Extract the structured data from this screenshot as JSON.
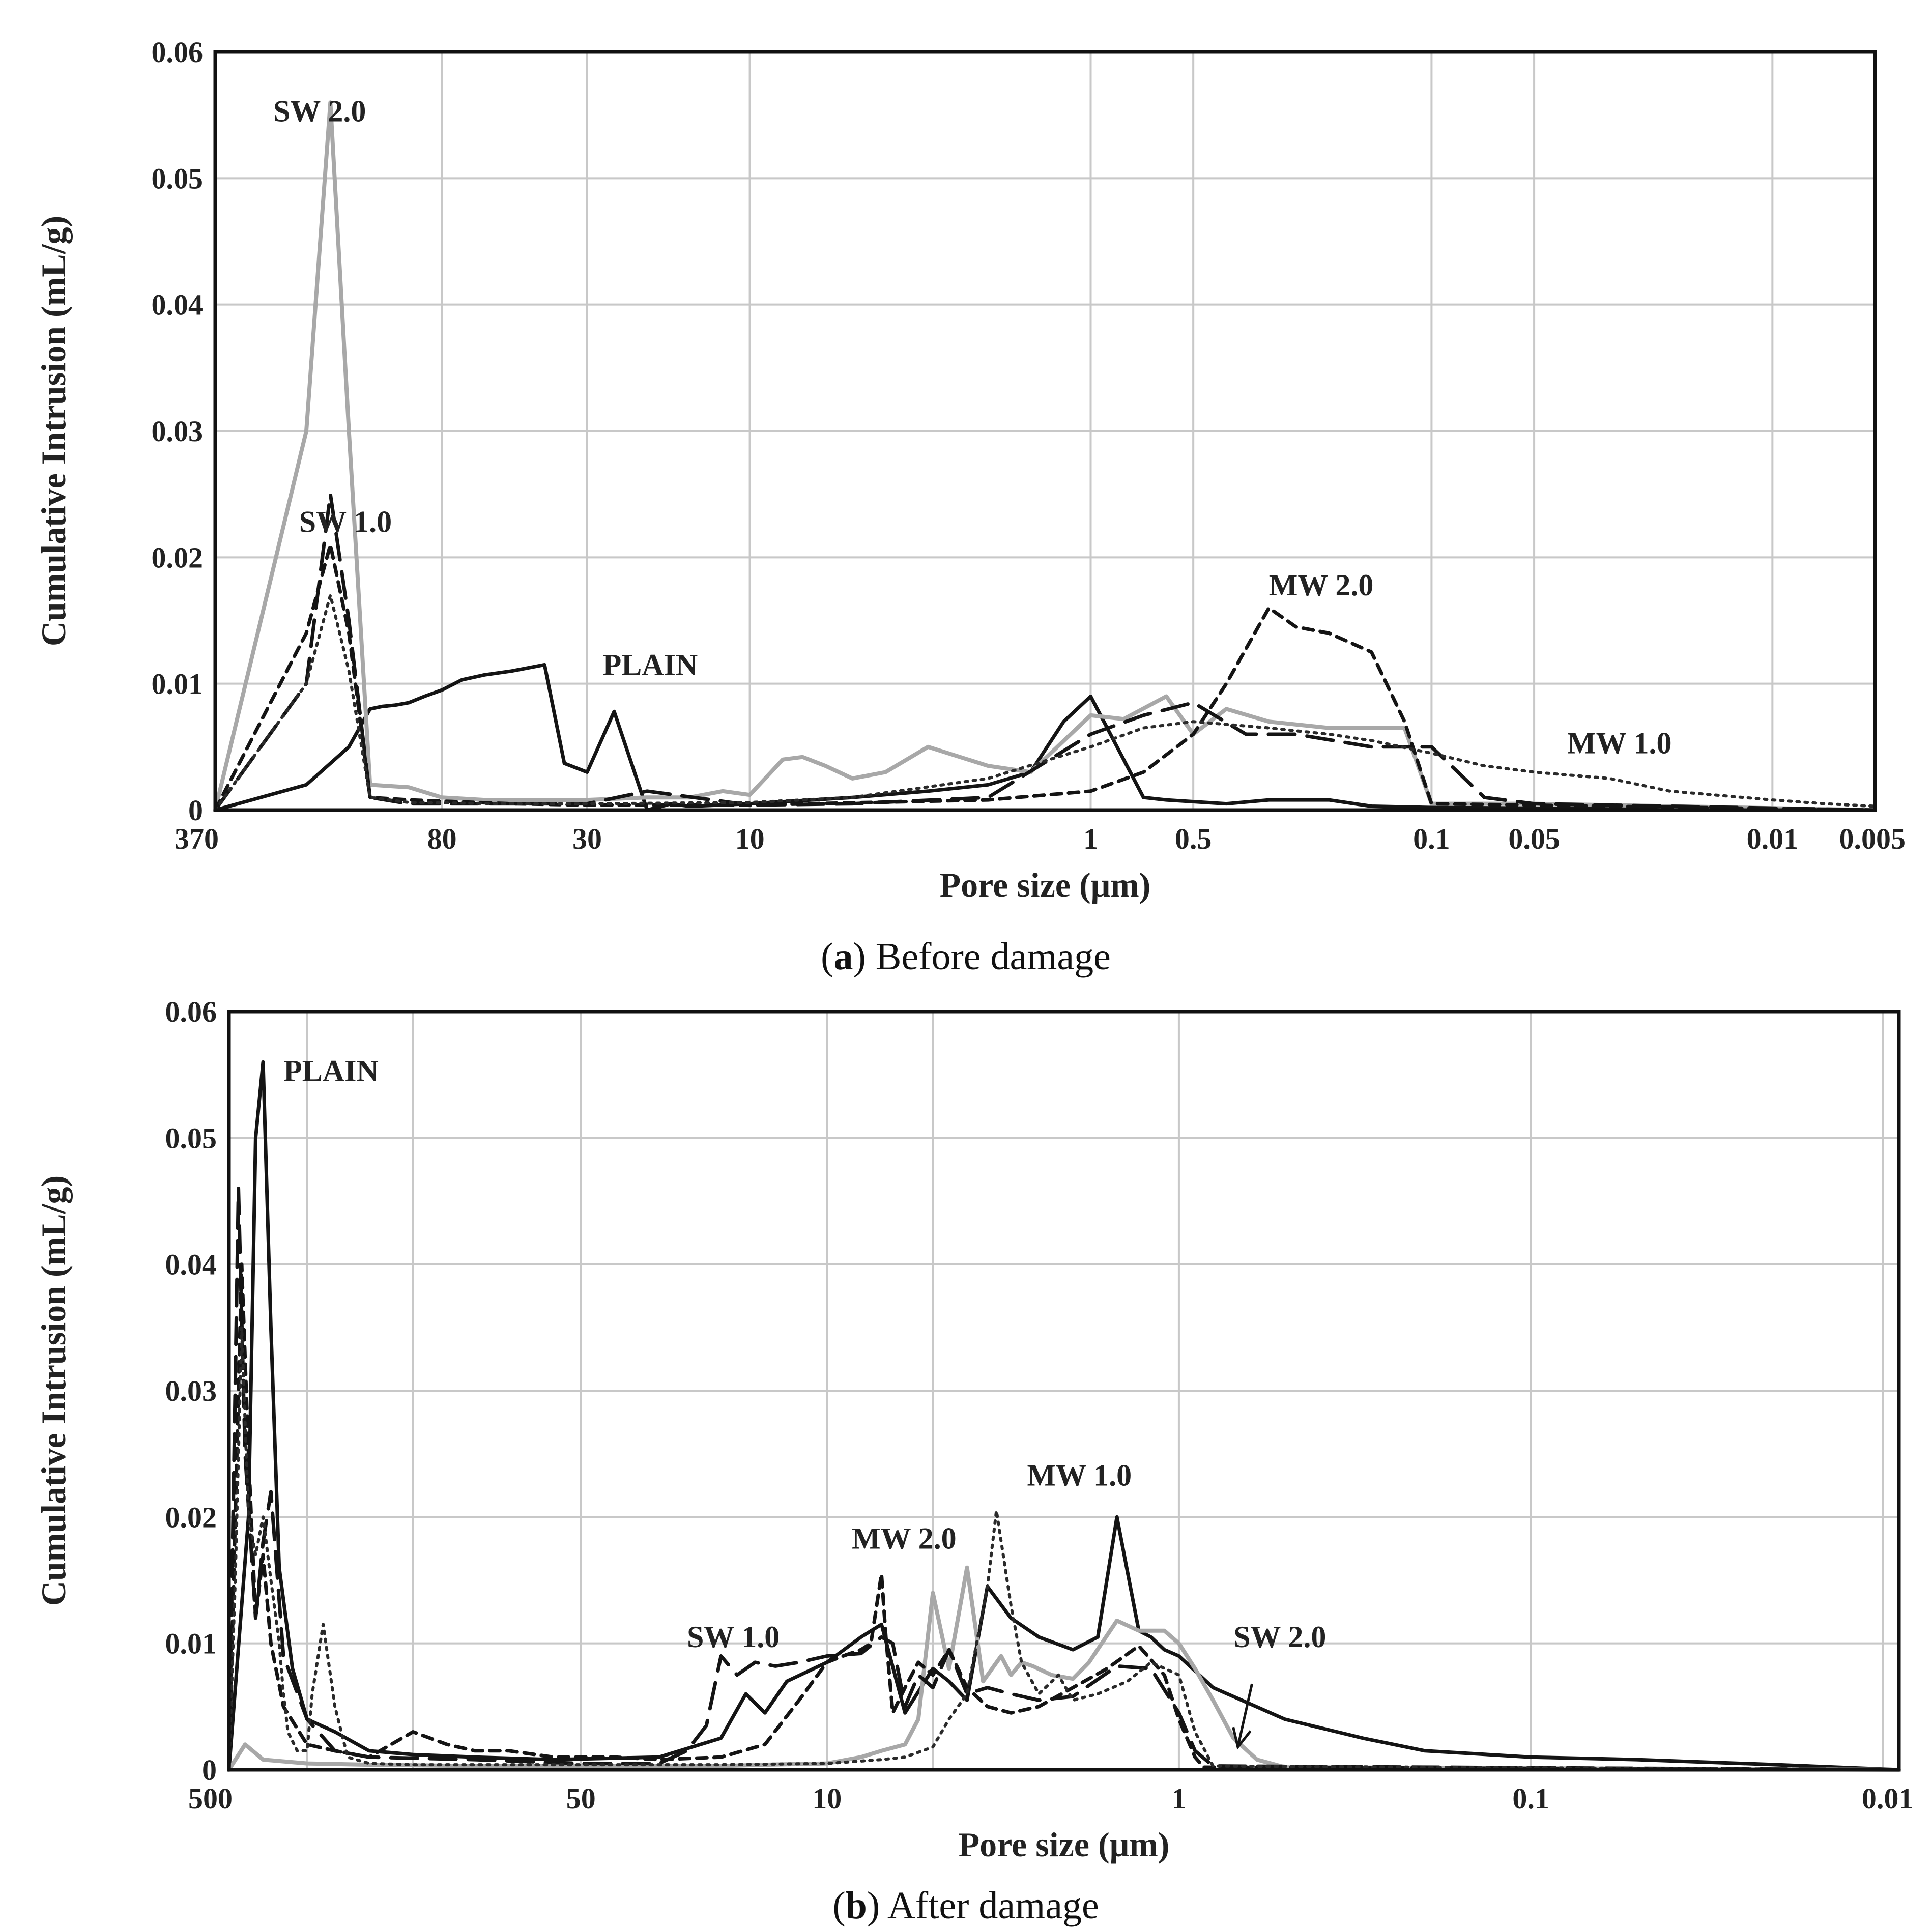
{
  "chart_data": [
    {
      "type": "line",
      "panel_letter": "a",
      "caption_rest": ") Before damage",
      "xlabel": "Pore size (μm)",
      "ylabel": "Cumulative Intrusion (mL/g)",
      "x_scale": "log-reversed",
      "xlim": [
        370,
        0.005
      ],
      "ylim": [
        0,
        0.06
      ],
      "x_tick_values": [
        370,
        80,
        30,
        10,
        1,
        0.5,
        0.1,
        0.05,
        0.01,
        0.005
      ],
      "x_tick_labels": [
        "370",
        "80",
        "30",
        "10",
        "1",
        "0.5",
        "0.1",
        "0.05",
        "0.01",
        "0.005"
      ],
      "y_tick_values": [
        0,
        0.01,
        0.02,
        0.03,
        0.04,
        0.05,
        0.06
      ],
      "y_tick_labels": [
        "0",
        "0.01",
        "0.02",
        "0.03",
        "0.04",
        "0.05",
        "0.06"
      ],
      "x_grid": [
        370,
        80,
        30,
        10,
        1,
        0.5,
        0.1,
        0.05,
        0.01,
        0.005
      ],
      "annotations": [
        {
          "text": "SW 2.0",
          "x": 250,
          "y": 0.0545
        },
        {
          "text": "SW 1.0",
          "x": 210,
          "y": 0.022
        },
        {
          "text": "PLAIN",
          "x": 27,
          "y": 0.0107
        },
        {
          "text": "MW 2.0",
          "x": 0.3,
          "y": 0.017
        },
        {
          "text": "MW 1.0",
          "x": 0.04,
          "y": 0.0045
        }
      ],
      "series": [
        {
          "name": "PLAIN",
          "style": "solid-black",
          "x": [
            370,
            200,
            150,
            130,
            120,
            110,
            100,
            90,
            80,
            70,
            60,
            50,
            40,
            35,
            30,
            25,
            20,
            17,
            15,
            10,
            5,
            3,
            2,
            1.5,
            1.2,
            1.0,
            0.8,
            0.7,
            0.6,
            0.4,
            0.3,
            0.2,
            0.15,
            0.1,
            0.005
          ],
          "y": [
            0,
            0.002,
            0.005,
            0.008,
            0.0082,
            0.0083,
            0.0085,
            0.009,
            0.0095,
            0.0103,
            0.0107,
            0.011,
            0.0115,
            0.0037,
            0.003,
            0.0078,
            0.0,
            0.0005,
            0.0003,
            0.0005,
            0.001,
            0.0015,
            0.002,
            0.003,
            0.007,
            0.009,
            0.004,
            0.001,
            0.0008,
            0.0005,
            0.0008,
            0.0008,
            0.0003,
            0.0002,
            0
          ]
        },
        {
          "name": "SW 2.0",
          "style": "solid-gray",
          "x": [
            370,
            200,
            170,
            150,
            130,
            100,
            80,
            60,
            40,
            30,
            20,
            15,
            12,
            10,
            8,
            7,
            6,
            5,
            4,
            3,
            2,
            1.5,
            1.0,
            0.8,
            0.6,
            0.5,
            0.4,
            0.3,
            0.2,
            0.12,
            0.1,
            0.05,
            0.005
          ],
          "y": [
            0,
            0.03,
            0.056,
            0.03,
            0.002,
            0.0018,
            0.001,
            0.0008,
            0.0008,
            0.0008,
            0.001,
            0.001,
            0.0015,
            0.0012,
            0.004,
            0.0042,
            0.0035,
            0.0025,
            0.003,
            0.005,
            0.0035,
            0.003,
            0.0075,
            0.0072,
            0.009,
            0.006,
            0.008,
            0.007,
            0.0065,
            0.0065,
            0.0005,
            0.0005,
            0
          ]
        },
        {
          "name": "SW 1.0",
          "style": "long-dash-black",
          "x": [
            370,
            200,
            170,
            150,
            130,
            100,
            50,
            30,
            20,
            10,
            5,
            2,
            1,
            0.7,
            0.5,
            0.35,
            0.25,
            0.15,
            0.1,
            0.07,
            0.05,
            0.005
          ],
          "y": [
            0,
            0.01,
            0.025,
            0.015,
            0.001,
            0.0005,
            0.0005,
            0.0005,
            0.0015,
            0.0004,
            0.0005,
            0.001,
            0.006,
            0.0075,
            0.0085,
            0.006,
            0.006,
            0.005,
            0.005,
            0.001,
            0.0005,
            0
          ]
        },
        {
          "name": "MW 2.0",
          "style": "short-dash-black",
          "x": [
            370,
            200,
            170,
            150,
            130,
            100,
            50,
            30,
            10,
            2,
            1,
            0.7,
            0.5,
            0.4,
            0.3,
            0.25,
            0.2,
            0.15,
            0.12,
            0.1,
            0.005
          ],
          "y": [
            0,
            0.014,
            0.021,
            0.014,
            0.001,
            0.0008,
            0.0005,
            0.0004,
            0.0004,
            0.0008,
            0.0015,
            0.003,
            0.006,
            0.01,
            0.016,
            0.0145,
            0.014,
            0.0125,
            0.007,
            0.0005,
            0
          ]
        },
        {
          "name": "MW 1.0",
          "style": "dotted-black",
          "x": [
            370,
            200,
            170,
            150,
            130,
            100,
            50,
            30,
            10,
            5,
            2,
            1,
            0.7,
            0.5,
            0.3,
            0.2,
            0.15,
            0.1,
            0.07,
            0.05,
            0.03,
            0.02,
            0.01,
            0.007,
            0.005
          ],
          "y": [
            0,
            0.01,
            0.017,
            0.011,
            0.001,
            0.0006,
            0.0005,
            0.0005,
            0.0006,
            0.001,
            0.0025,
            0.005,
            0.0065,
            0.007,
            0.0065,
            0.006,
            0.0055,
            0.0045,
            0.0035,
            0.003,
            0.0025,
            0.0015,
            0.0008,
            0.0005,
            0.0003
          ]
        }
      ]
    },
    {
      "type": "line",
      "panel_letter": "b",
      "caption_rest": ") After damage",
      "xlabel": "Pore size (μm)",
      "ylabel": "Cumulative Intrusion (mL/g)",
      "x_scale": "log-reversed",
      "xlim": [
        500,
        0.009
      ],
      "ylim": [
        0,
        0.06
      ],
      "x_tick_values": [
        500,
        50,
        10,
        1,
        0.1,
        0.01
      ],
      "x_tick_labels": [
        "500",
        "50",
        "10",
        "1",
        "0.1",
        "0.01"
      ],
      "y_tick_values": [
        0,
        0.01,
        0.02,
        0.03,
        0.04,
        0.05,
        0.06
      ],
      "y_tick_labels": [
        "0",
        "0.01",
        "0.02",
        "0.03",
        "0.04",
        "0.05",
        "0.06"
      ],
      "x_grid": [
        500,
        300,
        150,
        50,
        10,
        5,
        1,
        0.1,
        0.01
      ],
      "annotations": [
        {
          "text": "PLAIN",
          "x": 350,
          "y": 0.0545
        },
        {
          "text": "MW 1.0",
          "x": 2.7,
          "y": 0.0225
        },
        {
          "text": "MW 2.0",
          "x": 8.5,
          "y": 0.0175
        },
        {
          "text": "SW 1.0",
          "x": 25,
          "y": 0.0097
        },
        {
          "text": "SW 2.0",
          "x": 0.7,
          "y": 0.0097
        }
      ],
      "arrow": {
        "from_x": 0.62,
        "from_y": 0.0068,
        "to_x": 0.68,
        "to_y": 0.0018
      },
      "series": [
        {
          "name": "PLAIN",
          "style": "solid-black",
          "x": [
            500,
            440,
            420,
            400,
            380,
            360,
            330,
            300,
            250,
            200,
            150,
            100,
            60,
            30,
            20,
            17,
            15,
            13,
            10,
            8,
            7,
            6,
            5,
            4.5,
            4,
            3.5,
            3,
            2.5,
            2,
            1.7,
            1.5,
            1.3,
            1.2,
            1.1,
            1.0,
            0.8,
            0.5,
            0.3,
            0.2,
            0.1,
            0.05,
            0.02,
            0.009
          ],
          "y": [
            0,
            0.02,
            0.05,
            0.056,
            0.035,
            0.016,
            0.008,
            0.004,
            0.003,
            0.0015,
            0.0012,
            0.001,
            0.0008,
            0.001,
            0.0025,
            0.006,
            0.0045,
            0.007,
            0.0085,
            0.0105,
            0.0115,
            0.0045,
            0.008,
            0.007,
            0.0055,
            0.0145,
            0.012,
            0.0105,
            0.0095,
            0.0105,
            0.02,
            0.011,
            0.0105,
            0.0095,
            0.009,
            0.0065,
            0.004,
            0.0025,
            0.0015,
            0.001,
            0.0008,
            0.0004,
            0
          ]
        },
        {
          "name": "SW 2.0",
          "style": "solid-gray",
          "x": [
            500,
            450,
            400,
            300,
            200,
            100,
            50,
            20,
            15,
            10,
            8,
            7,
            6,
            5.5,
            5,
            4.5,
            4,
            3.6,
            3.2,
            3,
            2.8,
            2.6,
            2.3,
            2,
            1.8,
            1.5,
            1.3,
            1.1,
            1.0,
            0.9,
            0.8,
            0.7,
            0.6,
            0.5,
            0.009
          ],
          "y": [
            0,
            0.002,
            0.0008,
            0.0005,
            0.0004,
            0.0003,
            0.0003,
            0.0003,
            0.0004,
            0.0005,
            0.001,
            0.0015,
            0.002,
            0.004,
            0.014,
            0.008,
            0.016,
            0.007,
            0.009,
            0.0075,
            0.0085,
            0.0082,
            0.0075,
            0.0072,
            0.0085,
            0.0118,
            0.011,
            0.011,
            0.01,
            0.008,
            0.0055,
            0.0025,
            0.0008,
            0.0002,
            0
          ]
        },
        {
          "name": "SW 1.0",
          "style": "long-dash-black",
          "x": [
            500,
            470,
            450,
            420,
            400,
            380,
            350,
            300,
            250,
            200,
            100,
            50,
            30,
            25,
            22,
            20,
            18,
            16,
            14,
            12,
            10,
            8,
            7,
            6.5,
            6,
            5.5,
            5,
            4.5,
            4,
            3.5,
            3,
            2.5,
            2,
            1.5,
            1.2,
            1.0,
            0.9,
            0.8,
            0.009
          ],
          "y": [
            0,
            0.046,
            0.025,
            0.012,
            0.018,
            0.022,
            0.009,
            0.004,
            0.0015,
            0.001,
            0.0008,
            0.0005,
            0.0005,
            0.0015,
            0.0035,
            0.009,
            0.0075,
            0.0085,
            0.0082,
            0.0085,
            0.009,
            0.0092,
            0.0105,
            0.01,
            0.005,
            0.0075,
            0.0065,
            0.0095,
            0.006,
            0.0065,
            0.006,
            0.0055,
            0.0058,
            0.0082,
            0.008,
            0.0045,
            0.0015,
            0.0003,
            0
          ]
        },
        {
          "name": "MW 2.0",
          "style": "short-dash-black",
          "x": [
            500,
            480,
            460,
            440,
            420,
            400,
            380,
            350,
            300,
            250,
            200,
            150,
            120,
            100,
            80,
            60,
            40,
            30,
            20,
            15,
            12,
            10,
            9,
            8,
            7.5,
            7,
            6.8,
            6.5,
            6,
            5.5,
            5,
            4.5,
            4,
            3.5,
            3,
            2.5,
            2,
            1.6,
            1.3,
            1.1,
            1.0,
            0.9,
            0.85,
            0.009
          ],
          "y": [
            0,
            0.02,
            0.04,
            0.025,
            0.012,
            0.017,
            0.01,
            0.005,
            0.002,
            0.0015,
            0.001,
            0.003,
            0.002,
            0.0015,
            0.0015,
            0.001,
            0.001,
            0.0008,
            0.001,
            0.002,
            0.0055,
            0.0085,
            0.009,
            0.0095,
            0.01,
            0.0155,
            0.0105,
            0.0045,
            0.0065,
            0.0085,
            0.0075,
            0.0095,
            0.0065,
            0.005,
            0.0045,
            0.005,
            0.0065,
            0.008,
            0.0098,
            0.0075,
            0.004,
            0.001,
            0.0002,
            0
          ]
        },
        {
          "name": "MW 1.0",
          "style": "dotted-black",
          "x": [
            500,
            480,
            460,
            440,
            420,
            400,
            380,
            360,
            350,
            340,
            320,
            300,
            290,
            270,
            250,
            230,
            200,
            150,
            100,
            50,
            20,
            10,
            7,
            6,
            5,
            4.5,
            4,
            3.5,
            3.3,
            3,
            2.8,
            2.5,
            2.2,
            2,
            1.7,
            1.4,
            1.2,
            1.0,
            0.9,
            0.8,
            0.009
          ],
          "y": [
            0,
            0.015,
            0.035,
            0.02,
            0.017,
            0.02,
            0.015,
            0.01,
            0.006,
            0.003,
            0.0015,
            0.0015,
            0.006,
            0.0115,
            0.005,
            0.001,
            0.0005,
            0.0004,
            0.0004,
            0.0004,
            0.0004,
            0.0005,
            0.0008,
            0.001,
            0.0018,
            0.004,
            0.006,
            0.0145,
            0.0205,
            0.013,
            0.0085,
            0.006,
            0.0075,
            0.0055,
            0.006,
            0.007,
            0.0085,
            0.0075,
            0.003,
            0.0003,
            0
          ]
        }
      ]
    }
  ]
}
